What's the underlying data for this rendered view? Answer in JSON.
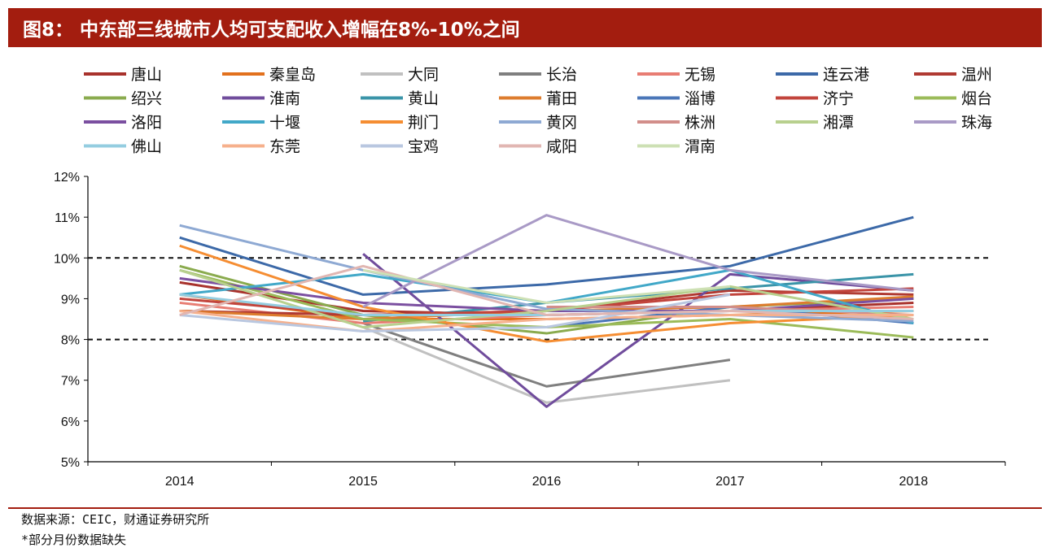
{
  "title": "图8：  中东部三线城市人均可支配收入增幅在8%-10%之间",
  "footer": {
    "source": "数据来源：CEIC，财通证券研究所",
    "note": "*部分月份数据缺失"
  },
  "chart_data": {
    "type": "line",
    "x": [
      "2014",
      "2015",
      "2016",
      "2017",
      "2018"
    ],
    "ylim": [
      5,
      12
    ],
    "yticks": [
      "5%",
      "6%",
      "7%",
      "8%",
      "9%",
      "10%",
      "11%",
      "12%"
    ],
    "reference_lines": [
      8,
      10
    ],
    "legend_position": "top",
    "series": [
      {
        "name": "唐山",
        "color": "#a8322c",
        "values": [
          9.4,
          8.7,
          8.6,
          8.7,
          8.9
        ]
      },
      {
        "name": "秦皇岛",
        "color": "#e2711d",
        "values": [
          9.1,
          8.5,
          8.5,
          8.6,
          8.7
        ]
      },
      {
        "name": "大同",
        "color": "#c0c0c0",
        "values": [
          null,
          8.3,
          6.45,
          7.0,
          null
        ]
      },
      {
        "name": "长治",
        "color": "#7f7f7f",
        "values": [
          null,
          8.4,
          6.85,
          7.5,
          null
        ]
      },
      {
        "name": "无锡",
        "color": "#e87d73",
        "values": [
          8.9,
          8.4,
          8.6,
          8.7,
          8.8
        ]
      },
      {
        "name": "连云港",
        "color": "#3c69a8",
        "values": [
          10.5,
          9.1,
          9.35,
          9.8,
          11.0
        ]
      },
      {
        "name": "温州",
        "color": "#b03a32",
        "values": [
          8.7,
          8.6,
          8.7,
          9.2,
          9.1
        ]
      },
      {
        "name": "绍兴",
        "color": "#8aab4e",
        "values": [
          9.8,
          8.6,
          8.15,
          8.8,
          9.0
        ]
      },
      {
        "name": "淮南",
        "color": "#704c9c",
        "values": [
          null,
          10.1,
          6.35,
          9.6,
          9.2
        ]
      },
      {
        "name": "黄山",
        "color": "#3a94a8",
        "values": [
          null,
          8.45,
          8.9,
          9.25,
          9.6
        ]
      },
      {
        "name": "莆田",
        "color": "#dd7c2e",
        "values": [
          8.7,
          8.5,
          8.7,
          8.8,
          9.05
        ]
      },
      {
        "name": "淄博",
        "color": "#4a76b8",
        "values": [
          null,
          null,
          8.3,
          8.8,
          8.4
        ]
      },
      {
        "name": "济宁",
        "color": "#c2443c",
        "values": [
          9.0,
          8.6,
          8.7,
          9.1,
          9.25
        ]
      },
      {
        "name": "烟台",
        "color": "#9bbb59",
        "values": [
          9.7,
          8.5,
          8.3,
          8.5,
          8.05
        ]
      },
      {
        "name": "洛阳",
        "color": "#7b4fa0",
        "values": [
          9.5,
          8.9,
          8.7,
          8.7,
          9.0
        ]
      },
      {
        "name": "十堰",
        "color": "#41a8c8",
        "values": [
          9.1,
          9.6,
          8.9,
          9.7,
          8.4
        ]
      },
      {
        "name": "荆门",
        "color": "#f58d32",
        "values": [
          10.3,
          8.8,
          7.95,
          8.4,
          8.6
        ]
      },
      {
        "name": "黄冈",
        "color": "#8ea9d3",
        "values": [
          10.8,
          9.7,
          8.75,
          8.6,
          8.45
        ]
      },
      {
        "name": "株洲",
        "color": "#d28e8a",
        "values": [
          null,
          null,
          8.8,
          8.8,
          8.6
        ]
      },
      {
        "name": "湘潭",
        "color": "#b8d08e",
        "values": [
          9.7,
          8.3,
          8.7,
          9.3,
          8.5
        ]
      },
      {
        "name": "珠海",
        "color": "#a99ac6",
        "values": [
          null,
          8.8,
          11.05,
          9.7,
          9.2
        ]
      },
      {
        "name": "佛山",
        "color": "#94cde0",
        "values": [
          9.1,
          8.6,
          8.6,
          8.7,
          8.7
        ]
      },
      {
        "name": "东莞",
        "color": "#f6b08c",
        "values": [
          8.7,
          8.2,
          8.5,
          8.6,
          8.6
        ]
      },
      {
        "name": "宝鸡",
        "color": "#b9c7e0",
        "values": [
          8.6,
          8.2,
          8.3,
          9.1,
          null
        ]
      },
      {
        "name": "咸阳",
        "color": "#e1b6b2",
        "values": [
          8.6,
          9.8,
          8.6,
          8.7,
          8.5
        ]
      },
      {
        "name": "渭南",
        "color": "#cde0b4",
        "values": [
          null,
          9.7,
          8.9,
          9.3,
          null
        ]
      }
    ]
  }
}
